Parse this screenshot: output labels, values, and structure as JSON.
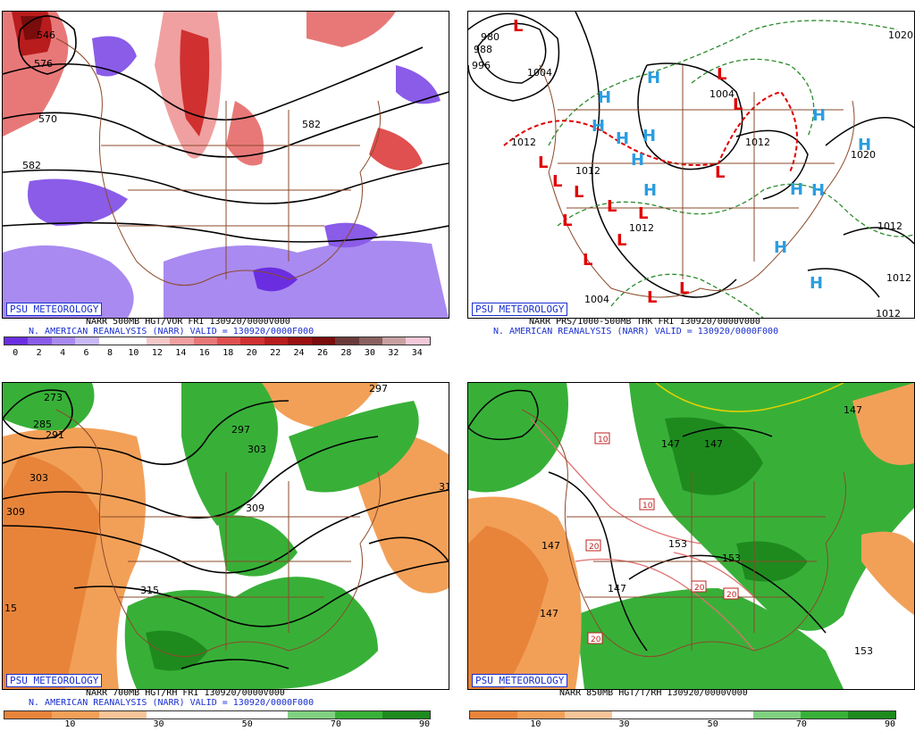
{
  "panels": [
    {
      "logo": "PSU METEOROLOGY",
      "caption_line1": "NARR 500MB HGT/VOR FRI 130920/0000V000",
      "caption_line2": "N. AMERICAN REANALYSIS (NARR) VALID = 130920/0000F000",
      "scale_labels": [
        "0",
        "2",
        "4",
        "6",
        "8",
        "10",
        "12",
        "14",
        "16",
        "18",
        "20",
        "22",
        "24",
        "26",
        "28",
        "30",
        "32",
        "34"
      ],
      "contour_labels": [
        "546",
        "576",
        "570",
        "582",
        "582"
      ],
      "colors": [
        "#6a2ee0",
        "#8a5ce8",
        "#a98af0",
        "#c8b8f6",
        "#ffffff",
        "#ffffff",
        "#f6c8c8",
        "#f0a0a0",
        "#e87878",
        "#e05050",
        "#d03030",
        "#b81c1c",
        "#9a1010",
        "#7a0c0c",
        "#6a3a3a",
        "#8a6060",
        "#c8a0a0",
        "#f4c8d8"
      ]
    },
    {
      "logo": "PSU METEOROLOGY",
      "caption_line1": "NARR PRS/1000-500MB THK FRI 130920/0000V000",
      "caption_line2": "N. AMERICAN REANALYSIS (NARR) VALID = 130920/0000F000",
      "pressure_labels": [
        "980",
        "988",
        "996",
        "1004",
        "1004",
        "1012",
        "1012",
        "1012",
        "1004",
        "1012",
        "1020",
        "1020",
        "1012",
        "1012",
        "1012"
      ],
      "highs": [
        "H",
        "H",
        "H",
        "H",
        "H",
        "H",
        "H",
        "H",
        "H",
        "H",
        "H",
        "H",
        "H"
      ],
      "lows": [
        "L",
        "L",
        "L",
        "L",
        "L",
        "L",
        "L",
        "L",
        "L",
        "L",
        "L",
        "L",
        "L",
        "L"
      ],
      "high_color": "#2a9ee0",
      "low_color": "#e00000"
    },
    {
      "logo": "PSU METEOROLOGY",
      "caption_line1": "NARR 700MB HGT/RH FRI 130920/0000V000",
      "caption_line2": "N. AMERICAN REANALYSIS (NARR) VALID = 130920/0000F000",
      "scale_labels": [
        "10",
        "30",
        "50",
        "70",
        "90"
      ],
      "contour_labels": [
        "273",
        "285",
        "291",
        "297",
        "297",
        "303",
        "303",
        "309",
        "309",
        "315",
        "15",
        "31"
      ]
    },
    {
      "logo": "PSU METEOROLOGY",
      "caption_line1": "NARR 850MB HGT/T/RH 130920/0000V000",
      "scale_labels": [
        "10",
        "30",
        "50",
        "70",
        "90"
      ],
      "contour_labels": [
        "147",
        "147",
        "147",
        "147",
        "147",
        "147",
        "153",
        "153",
        "153",
        "10",
        "10",
        "20",
        "20",
        "20",
        "20"
      ]
    }
  ]
}
